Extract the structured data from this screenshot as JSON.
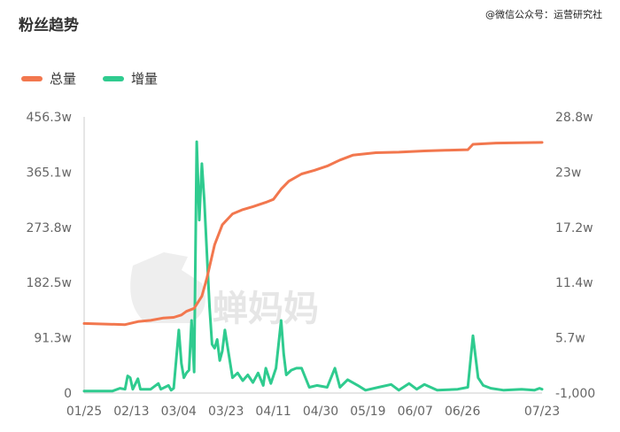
{
  "header": {
    "title": "粉丝趋势",
    "watermark": "@微信公众号：运营研究社"
  },
  "legend": [
    {
      "label": "总量",
      "color": "#F2774E"
    },
    {
      "label": "增量",
      "color": "#2FCB8F"
    }
  ],
  "brand_watermark": "蝉妈妈",
  "chart_data": {
    "type": "line",
    "x_ticks": [
      "01/25",
      "02/13",
      "03/04",
      "03/23",
      "04/11",
      "04/30",
      "05/19",
      "06/07",
      "06/26",
      "07/23"
    ],
    "x_range": [
      "01/25",
      "07/23"
    ],
    "y_left": {
      "ticks": [
        "0",
        "91.3w",
        "182.5w",
        "273.8w",
        "365.1w",
        "456.3w"
      ],
      "range": [
        0,
        456.3
      ],
      "unit": "w"
    },
    "y_right": {
      "ticks": [
        "-1,000",
        "5.7w",
        "11.4w",
        "17.2w",
        "23w",
        "28.8w"
      ],
      "range": [
        -0.1,
        28.8
      ],
      "unit": "w"
    },
    "series": [
      {
        "name": "总量",
        "axis": "left",
        "color": "#F2774E",
        "points": [
          [
            "01/25",
            115
          ],
          [
            "02/10",
            113
          ],
          [
            "02/15",
            118
          ],
          [
            "02/20",
            120
          ],
          [
            "02/25",
            124
          ],
          [
            "03/01",
            125
          ],
          [
            "03/04",
            129
          ],
          [
            "03/06",
            135
          ],
          [
            "03/09",
            140
          ],
          [
            "03/12",
            160
          ],
          [
            "03/14",
            190
          ],
          [
            "03/17",
            245
          ],
          [
            "03/20",
            278
          ],
          [
            "03/24",
            296
          ],
          [
            "03/28",
            303
          ],
          [
            "04/01",
            308
          ],
          [
            "04/06",
            315
          ],
          [
            "04/09",
            320
          ],
          [
            "04/12",
            337
          ],
          [
            "04/15",
            350
          ],
          [
            "04/20",
            362
          ],
          [
            "04/25",
            368
          ],
          [
            "04/30",
            375
          ],
          [
            "05/05",
            385
          ],
          [
            "05/10",
            393
          ],
          [
            "05/19",
            397
          ],
          [
            "05/28",
            398
          ],
          [
            "06/07",
            400
          ],
          [
            "06/15",
            401
          ],
          [
            "06/24",
            402
          ],
          [
            "06/26",
            411
          ],
          [
            "07/05",
            413
          ],
          [
            "07/23",
            414
          ]
        ]
      },
      {
        "name": "增量",
        "axis": "right",
        "color": "#2FCB8F",
        "points": [
          [
            "01/25",
            0.1
          ],
          [
            "02/05",
            0.1
          ],
          [
            "02/08",
            0.4
          ],
          [
            "02/10",
            0.3
          ],
          [
            "02/11",
            1.7
          ],
          [
            "02/12",
            1.5
          ],
          [
            "02/13",
            0.3
          ],
          [
            "02/15",
            1.4
          ],
          [
            "02/16",
            0.3
          ],
          [
            "02/20",
            0.3
          ],
          [
            "02/23",
            0.9
          ],
          [
            "02/24",
            0.3
          ],
          [
            "02/27",
            0.7
          ],
          [
            "02/28",
            0.2
          ],
          [
            "03/01",
            0.4
          ],
          [
            "03/03",
            6.5
          ],
          [
            "03/04",
            3.0
          ],
          [
            "03/05",
            1.5
          ],
          [
            "03/06",
            2.0
          ],
          [
            "03/07",
            2.3
          ],
          [
            "03/08",
            7.5
          ],
          [
            "03/09",
            2.1
          ],
          [
            "03/10",
            26.2
          ],
          [
            "03/11",
            18.0
          ],
          [
            "03/12",
            23.9
          ],
          [
            "03/13",
            20.0
          ],
          [
            "03/15",
            9.0
          ],
          [
            "03/16",
            5.0
          ],
          [
            "03/17",
            4.6
          ],
          [
            "03/18",
            5.5
          ],
          [
            "03/19",
            3.3
          ],
          [
            "03/20",
            4.3
          ],
          [
            "03/21",
            6.5
          ],
          [
            "03/24",
            1.5
          ],
          [
            "03/26",
            2.0
          ],
          [
            "03/28",
            1.2
          ],
          [
            "03/30",
            1.8
          ],
          [
            "04/01",
            1.0
          ],
          [
            "04/03",
            2.0
          ],
          [
            "04/05",
            0.7
          ],
          [
            "04/06",
            2.5
          ],
          [
            "04/08",
            0.9
          ],
          [
            "04/10",
            2.5
          ],
          [
            "04/12",
            7.5
          ],
          [
            "04/13",
            4.0
          ],
          [
            "04/14",
            1.8
          ],
          [
            "04/16",
            2.3
          ],
          [
            "04/18",
            2.5
          ],
          [
            "04/20",
            2.5
          ],
          [
            "04/23",
            0.5
          ],
          [
            "04/26",
            0.7
          ],
          [
            "04/30",
            0.5
          ],
          [
            "05/03",
            2.5
          ],
          [
            "05/05",
            0.5
          ],
          [
            "05/08",
            1.3
          ],
          [
            "05/12",
            0.7
          ],
          [
            "05/15",
            0.2
          ],
          [
            "05/20",
            0.5
          ],
          [
            "05/25",
            0.8
          ],
          [
            "05/28",
            0.2
          ],
          [
            "06/01",
            0.9
          ],
          [
            "06/04",
            0.3
          ],
          [
            "06/07",
            0.8
          ],
          [
            "06/12",
            0.2
          ],
          [
            "06/20",
            0.3
          ],
          [
            "06/24",
            0.5
          ],
          [
            "06/26",
            5.9
          ],
          [
            "06/28",
            1.5
          ],
          [
            "06/30",
            0.7
          ],
          [
            "07/03",
            0.4
          ],
          [
            "07/08",
            0.2
          ],
          [
            "07/15",
            0.3
          ],
          [
            "07/20",
            0.2
          ],
          [
            "07/22",
            0.4
          ],
          [
            "07/23",
            0.3
          ]
        ]
      }
    ],
    "grid": {
      "horizontal": false,
      "vertical": false
    },
    "legend_position": "top-left"
  }
}
